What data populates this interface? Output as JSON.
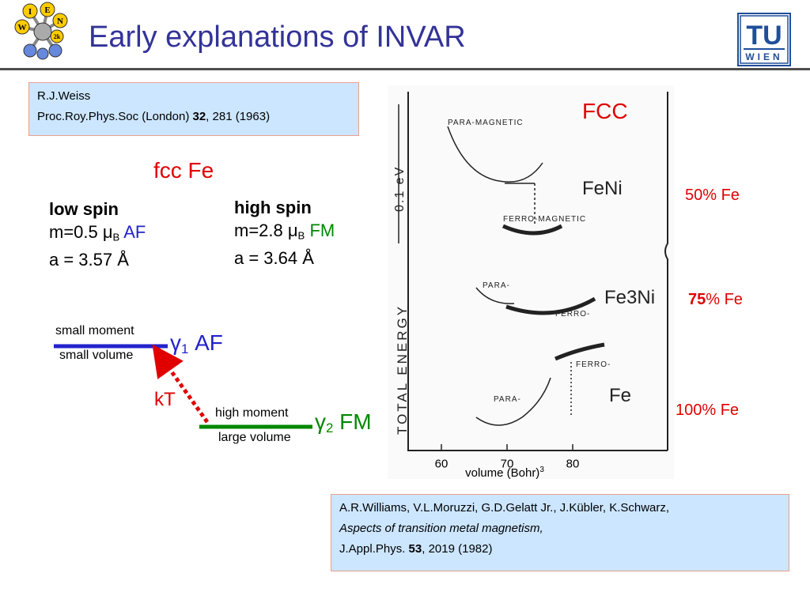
{
  "slide": {
    "title": "Early explanations of INVAR",
    "logo_left": {
      "letters": [
        "I",
        "E",
        "W",
        "N",
        "2k"
      ]
    },
    "logo_right": {
      "top": "TU",
      "bottom": "WIEN"
    }
  },
  "reference_1": {
    "authors": "R.J.Weiss",
    "journal": "Proc.Roy.Phys.Soc (London) ",
    "volume": "32",
    "pages_year": ", 281 (1963)"
  },
  "phase_info": {
    "heading": "fcc Fe",
    "low_spin": {
      "label": "low spin",
      "moment_prefix": "m=0.5 μ",
      "moment_sub": "B",
      "state": "AF",
      "lattice": "a = 3.57 Å"
    },
    "high_spin": {
      "label": "high spin",
      "moment_prefix": "m=2.8 μ",
      "moment_sub": "B",
      "state": "FM",
      "lattice": "a = 3.64 Å"
    }
  },
  "energy_diagram": {
    "gamma1": {
      "symbol": "γ",
      "sub": "1",
      "state": "AF",
      "top_label": "small moment",
      "bottom_label": "small volume"
    },
    "gamma2": {
      "symbol": "γ",
      "sub": "2",
      "state": "FM",
      "top_label": "high moment",
      "bottom_label": "large volume"
    },
    "arrow_label": "kT"
  },
  "plot": {
    "structure_label": "FCC",
    "y_axis_label": "TOTAL ENERGY",
    "energy_scale_label": "0.1 eV",
    "x_axis": {
      "ticks": [
        "60",
        "70",
        "80"
      ],
      "label_prefix": "volume (Bohr)",
      "label_sup": "3"
    },
    "panels": [
      {
        "compound": "FeNi",
        "para": "PARA-MAGNETIC",
        "ferro": "FERRO-MAGNETIC",
        "fe_content": "50% Fe"
      },
      {
        "compound": "Fe3Ni",
        "para": "PARA-",
        "ferro": "FERRO-",
        "fe_content_bold": "75",
        "fe_content_rest": "% Fe"
      },
      {
        "compound": "Fe",
        "para": "PARA-",
        "ferro": "FERRO-",
        "fe_content": "100% Fe"
      }
    ]
  },
  "reference_2": {
    "authors": "A.R.Williams, V.L.Moruzzi, G.D.Gelatt Jr., J.Kübler, K.Schwarz,",
    "title": "Aspects of transition metal magnetism,",
    "journal": "J.Appl.Phys. ",
    "volume": "53",
    "pages_year": ", 2019 (1982)"
  },
  "colors": {
    "title": "#333399",
    "accent_red": "#e00000",
    "af_blue": "#2222cc",
    "fm_green": "#008800",
    "ref_box_bg": "#cce6ff",
    "ref_box_border": "#e8a08a"
  }
}
